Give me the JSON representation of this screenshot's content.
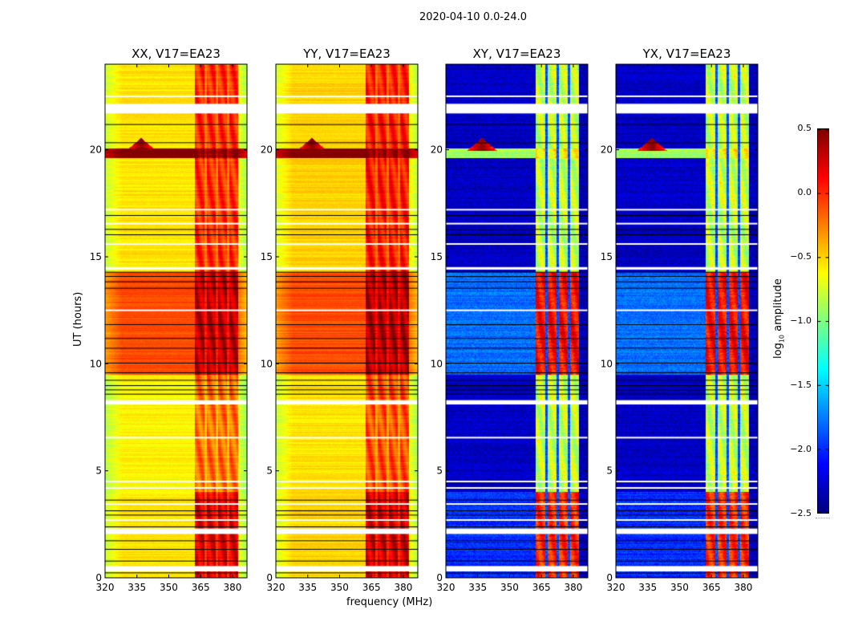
{
  "chart_data": {
    "type": "heatmap",
    "title": "2020-04-10 0.0-24.0",
    "xlabel": "frequency (MHz)",
    "ylabel": "UT (hours)",
    "xlim": [
      320,
      386.8
    ],
    "ylim": [
      0,
      24
    ],
    "xticks": [
      320,
      335,
      350,
      365,
      380
    ],
    "yticks": [
      0,
      5,
      10,
      15,
      20
    ],
    "colorbar": {
      "label_prefix": "log",
      "label_sub": "10",
      "label_suffix": " amplitude",
      "colormap": "jet",
      "range": [
        -2.5,
        0.5
      ],
      "ticks": [
        "0.5",
        "0.0",
        "−0.5",
        "−1.0",
        "−1.5",
        "−2.0",
        "−2.5"
      ],
      "tick_values": [
        0.5,
        0.0,
        -0.5,
        -1.0,
        -1.5,
        -2.0,
        -2.5
      ]
    },
    "subbands_mhz": [
      [
        362.3,
        366.8
      ],
      [
        367.9,
        372.1
      ],
      [
        373.2,
        377.4
      ],
      [
        378.5,
        382.6
      ]
    ],
    "flagged_white_hours": [
      [
        0.3,
        0.55
      ],
      [
        2.05,
        2.3
      ],
      [
        8.1,
        8.3
      ],
      [
        14.4,
        14.52
      ],
      [
        21.7,
        22.15
      ],
      2.7,
      3.45,
      4.2,
      4.5,
      6.55,
      12.5,
      15.6,
      16.55,
      17.2,
      22.5
    ],
    "black_line_hours": [
      0.25,
      0.8,
      1.35,
      1.75,
      2.4,
      2.95,
      3.15,
      3.65,
      8.6,
      8.8,
      9.0,
      9.25,
      9.6,
      10.05,
      10.75,
      11.2,
      11.85,
      13.55,
      13.85,
      14.1,
      14.3,
      16.05,
      16.3,
      16.95,
      20.35,
      21.2
    ],
    "rfi_event": {
      "hour": 20.05,
      "freq_mhz": 337
    },
    "panels": [
      {
        "title": "XX, V17=EA23",
        "segments": [
          {
            "t": [
              0,
              4
            ],
            "low": -0.55,
            "high": 0.2
          },
          {
            "t": [
              4,
              9.5
            ],
            "low": -0.6,
            "high": -0.2
          },
          {
            "t": [
              9.5,
              14.3
            ],
            "low": -0.1,
            "high": 0.3
          },
          {
            "t": [
              14.3,
              19.6
            ],
            "low": -0.55,
            "high": 0.0
          },
          {
            "t": [
              19.6,
              20.05
            ],
            "low": 0.5,
            "high": 0.5
          },
          {
            "t": [
              20.05,
              24
            ],
            "low": -0.55,
            "high": 0.0
          }
        ]
      },
      {
        "title": "YY, V17=EA23",
        "segments": [
          {
            "t": [
              0,
              4
            ],
            "low": -0.5,
            "high": 0.25
          },
          {
            "t": [
              4,
              9.5
            ],
            "low": -0.55,
            "high": -0.1
          },
          {
            "t": [
              9.5,
              14.3
            ],
            "low": -0.1,
            "high": 0.35
          },
          {
            "t": [
              14.3,
              19.6
            ],
            "low": -0.5,
            "high": 0.05
          },
          {
            "t": [
              19.6,
              20.05
            ],
            "low": 0.5,
            "high": 0.5
          },
          {
            "t": [
              20.05,
              24
            ],
            "low": -0.5,
            "high": 0.05
          }
        ]
      },
      {
        "title": "XY, V17=EA23",
        "segments": [
          {
            "t": [
              0,
              4
            ],
            "low": -2.0,
            "high": 0.0
          },
          {
            "t": [
              4,
              9.5
            ],
            "low": -2.3,
            "high": -0.8
          },
          {
            "t": [
              9.5,
              14.3
            ],
            "low": -1.8,
            "high": 0.1
          },
          {
            "t": [
              14.3,
              19.6
            ],
            "low": -2.3,
            "high": -0.8
          },
          {
            "t": [
              19.6,
              20.05
            ],
            "low": -0.9,
            "high": -0.6
          },
          {
            "t": [
              20.05,
              24
            ],
            "low": -2.3,
            "high": -0.8
          }
        ]
      },
      {
        "title": "YX, V17=EA23",
        "segments": [
          {
            "t": [
              0,
              4
            ],
            "low": -2.0,
            "high": 0.0
          },
          {
            "t": [
              4,
              9.5
            ],
            "low": -2.3,
            "high": -0.8
          },
          {
            "t": [
              9.5,
              14.3
            ],
            "low": -1.8,
            "high": 0.1
          },
          {
            "t": [
              14.3,
              19.6
            ],
            "low": -2.3,
            "high": -0.8
          },
          {
            "t": [
              19.6,
              20.05
            ],
            "low": -0.9,
            "high": -0.6
          },
          {
            "t": [
              20.05,
              24
            ],
            "low": -2.3,
            "high": -0.8
          }
        ]
      }
    ]
  }
}
